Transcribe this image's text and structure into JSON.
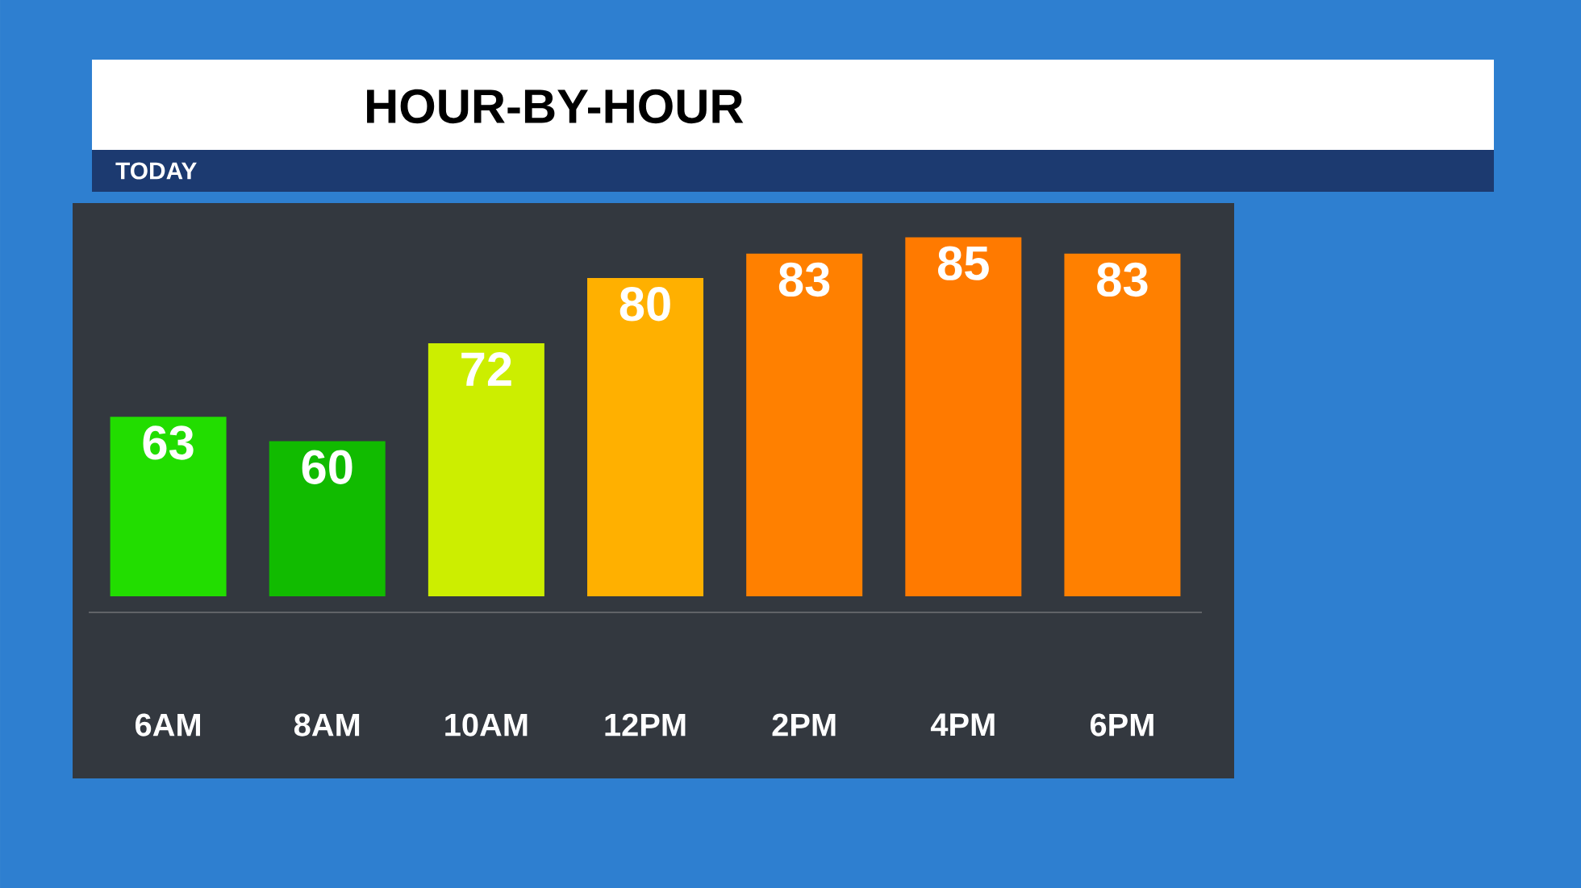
{
  "chart_data": {
    "type": "bar",
    "title": "HOUR-BY-HOUR",
    "subtitle": "TODAY",
    "categories": [
      "6AM",
      "8AM",
      "10AM",
      "12PM",
      "2PM",
      "4PM",
      "6PM"
    ],
    "values": [
      63,
      60,
      72,
      80,
      83,
      85,
      83
    ],
    "colors": [
      "#22dd00",
      "#11bb00",
      "#ccee00",
      "#ffb000",
      "#ff8000",
      "#ff7a00",
      "#ff8000"
    ],
    "ylim": [
      41,
      89
    ],
    "data_labels": true,
    "tick_labels": "x"
  }
}
